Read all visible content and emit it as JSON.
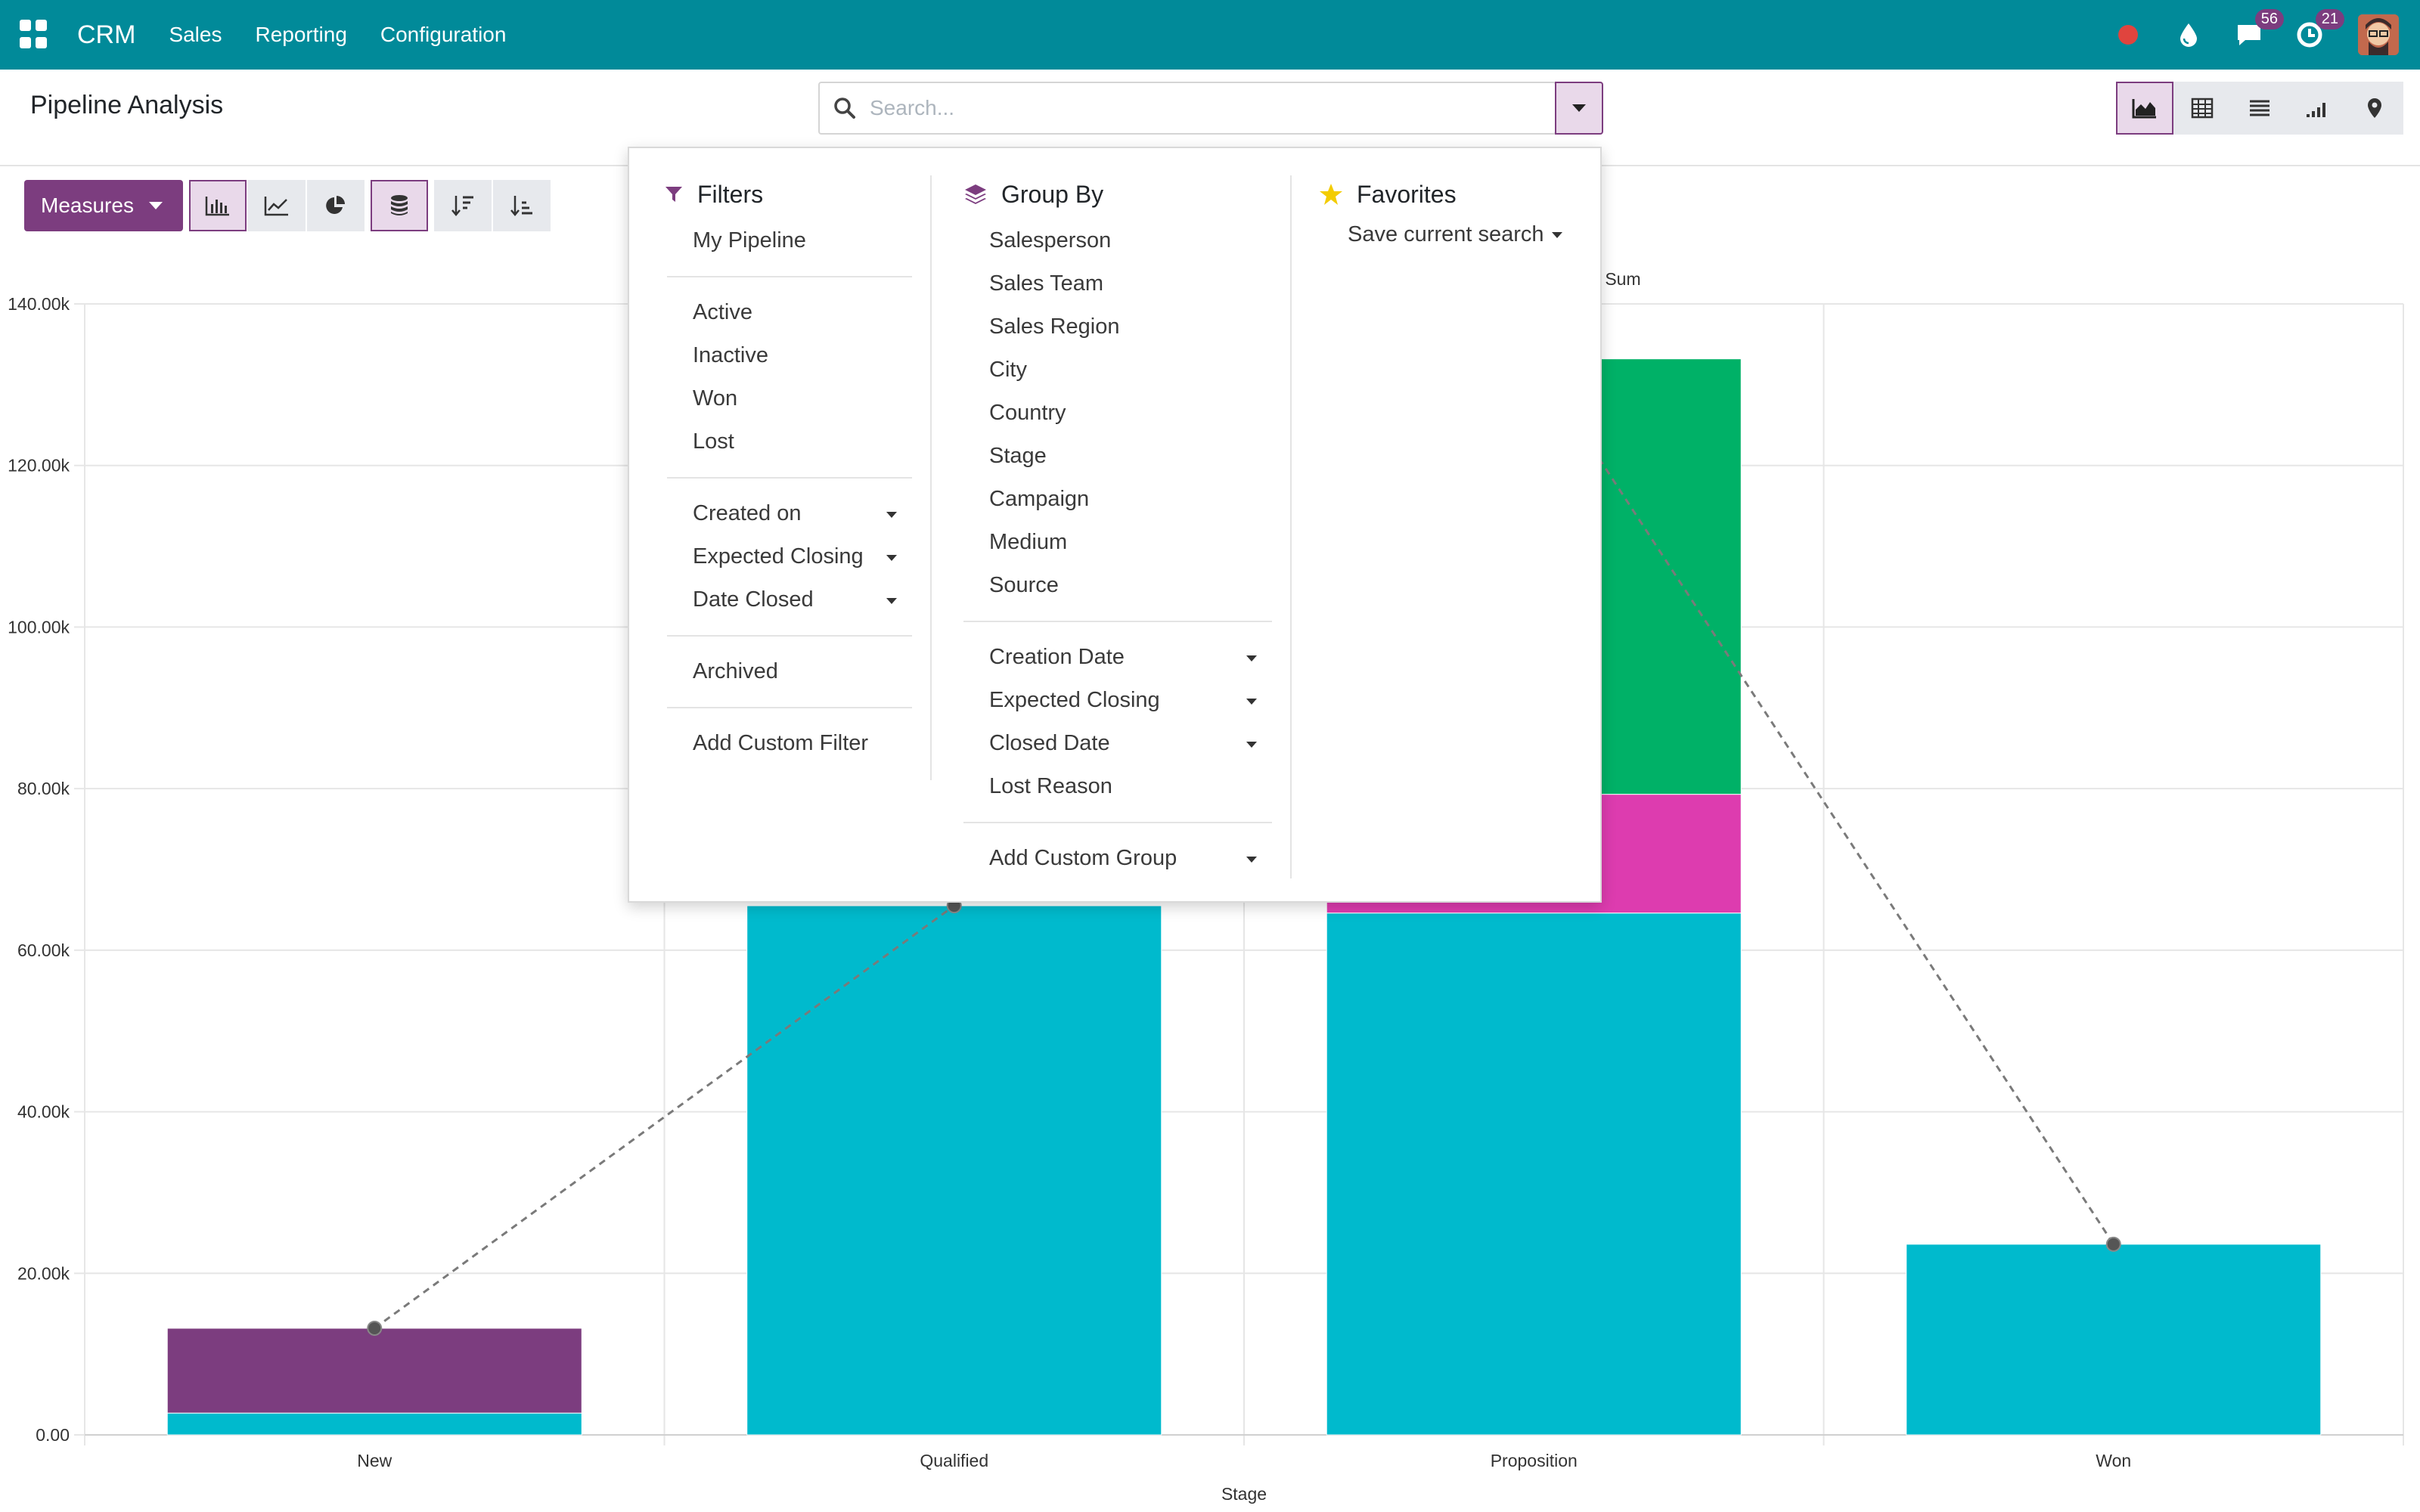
{
  "navbar": {
    "brand": "CRM",
    "menu": [
      "Sales",
      "Reporting",
      "Configuration"
    ],
    "messages_badge": "56",
    "activities_badge": "21",
    "icons": [
      "apps-icon",
      "record-icon",
      "droplet-icon",
      "chat-icon",
      "clock-icon",
      "user-avatar"
    ]
  },
  "control_panel": {
    "title": "Pipeline Analysis",
    "search_placeholder": "Search...",
    "measures_label": "Measures"
  },
  "filters": {
    "header": "Filters",
    "groups": [
      [
        "My Pipeline"
      ],
      [
        "Active",
        "Inactive",
        "Won",
        "Lost"
      ],
      [
        "Created on",
        "Expected Closing",
        "Date Closed"
      ],
      [
        "Archived"
      ],
      [
        "Add Custom Filter"
      ]
    ]
  },
  "groupby": {
    "header": "Group By",
    "groups": [
      [
        "Salesperson",
        "Sales Team",
        "Sales Region",
        "City",
        "Country",
        "Stage",
        "Campaign",
        "Medium",
        "Source"
      ],
      [
        "Creation Date",
        "Expected Closing",
        "Closed Date",
        "Lost Reason"
      ],
      [
        "Add Custom Group"
      ]
    ]
  },
  "favorites": {
    "header": "Favorites",
    "save_label": "Save current search"
  },
  "colors": {
    "navbar": "#018a99",
    "primary": "#7c3d7f",
    "series_cyan": "#00bacd",
    "series_purple": "#7c3d7f",
    "series_magenta": "#dd3caf",
    "series_green": "#00b167"
  },
  "chart_data": {
    "type": "bar",
    "stacked": true,
    "categories": [
      "New",
      "Qualified",
      "Proposition",
      "Won"
    ],
    "series": [
      {
        "values": [
          2700,
          65500,
          64600,
          23600
        ]
      },
      {
        "values": [
          10500,
          0,
          0,
          0
        ]
      },
      {
        "values": [
          0,
          0,
          14700,
          0
        ]
      },
      {
        "values": [
          0,
          0,
          53900,
          0
        ]
      }
    ],
    "line_series": {
      "name": "Sum",
      "values": [
        13200,
        65500,
        133200,
        23600
      ]
    },
    "yticks": [
      "0.00",
      "20.00k",
      "40.00k",
      "60.00k",
      "80.00k",
      "100.00k",
      "120.00k",
      "140.00k"
    ],
    "ylim": [
      0,
      140000
    ],
    "xlabel": "Stage",
    "legend_label": "Sum",
    "grid": true
  }
}
